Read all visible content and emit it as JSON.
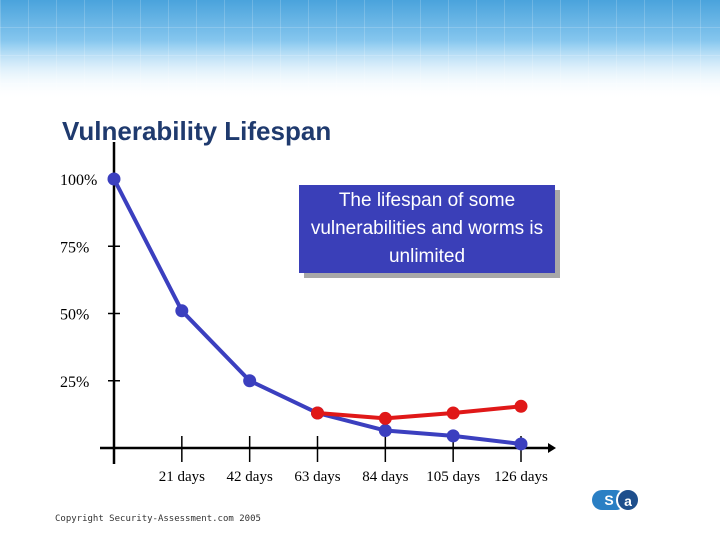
{
  "slide": {
    "title": "Vulnerability Lifespan",
    "callout": "The lifespan of some vulnerabilities and worms is unlimited",
    "copyright": "Copyright Security-Assessment.com 2005",
    "logo_left": "S",
    "logo_right": "a",
    "logo_icon": "sa-logo-icon"
  },
  "colors": {
    "blue_series": "#3b3fbf",
    "red_series": "#e01818",
    "callout_bg": "#3a3fb8",
    "title": "#1f3a6e"
  },
  "chart_data": {
    "type": "line",
    "y_tick_labels": [
      "100%",
      "75%",
      "50%",
      "25%"
    ],
    "y_ticks": [
      100,
      75,
      50,
      25
    ],
    "x_tick_labels": [
      "21 days",
      "42 days",
      "63 days",
      "84 days",
      "105 days",
      "126 days"
    ],
    "x_ticks": [
      21,
      42,
      63,
      84,
      105,
      126
    ],
    "xlim": [
      0,
      126
    ],
    "ylim": [
      0,
      100
    ],
    "grid": false,
    "series": [
      {
        "color": "#3b3fbf",
        "x": [
          0,
          21,
          42,
          63,
          84,
          105,
          126
        ],
        "y": [
          100,
          51,
          25,
          13,
          6.5,
          4.5,
          1.5
        ]
      },
      {
        "color": "#e01818",
        "x": [
          63,
          84,
          105,
          126
        ],
        "y": [
          13,
          11,
          13,
          15.5
        ]
      }
    ]
  }
}
